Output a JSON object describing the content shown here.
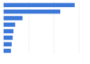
{
  "chart_data": {
    "type": "bar",
    "orientation": "horizontal",
    "categories": [
      null,
      null,
      null,
      null,
      null,
      null,
      null,
      null
    ],
    "values": [
      28.2,
      22.5,
      7.5,
      4.6,
      3.9,
      3.6,
      3.2,
      2.9
    ],
    "color": "#3b78d8",
    "xlim": [
      0,
      30
    ],
    "xticks": [
      0,
      10,
      20,
      30
    ],
    "grid": true,
    "tick_labels": false
  }
}
